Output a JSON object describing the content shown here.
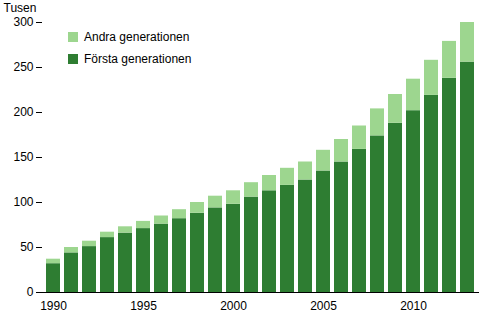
{
  "chart_data": {
    "type": "bar",
    "stacked": true,
    "grid": false,
    "legend": "top-left",
    "y_label": "Tusen",
    "categories": [
      "1990",
      null,
      null,
      null,
      null,
      "1995",
      null,
      null,
      null,
      null,
      "2000",
      null,
      null,
      null,
      null,
      "2005",
      null,
      null,
      null,
      null,
      "2010",
      null,
      null,
      null
    ],
    "series": [
      {
        "name": "Första generationen",
        "color": "#2e7d32",
        "values": [
          32,
          44,
          51,
          61,
          66,
          71,
          76,
          82,
          88,
          94,
          98,
          106,
          113,
          119,
          125,
          135,
          145,
          159,
          174,
          188,
          202,
          219,
          238,
          256
        ]
      },
      {
        "name": "Andra generationen",
        "color": "#9dd68f",
        "values": [
          5,
          6,
          6,
          6,
          7,
          8,
          9,
          10,
          12,
          13,
          15,
          16,
          17,
          19,
          20,
          23,
          25,
          26,
          30,
          32,
          35,
          39,
          41,
          44
        ]
      }
    ],
    "ylim": [
      0,
      300
    ],
    "yticks": [
      0,
      50,
      100,
      150,
      200,
      250,
      300
    ]
  }
}
